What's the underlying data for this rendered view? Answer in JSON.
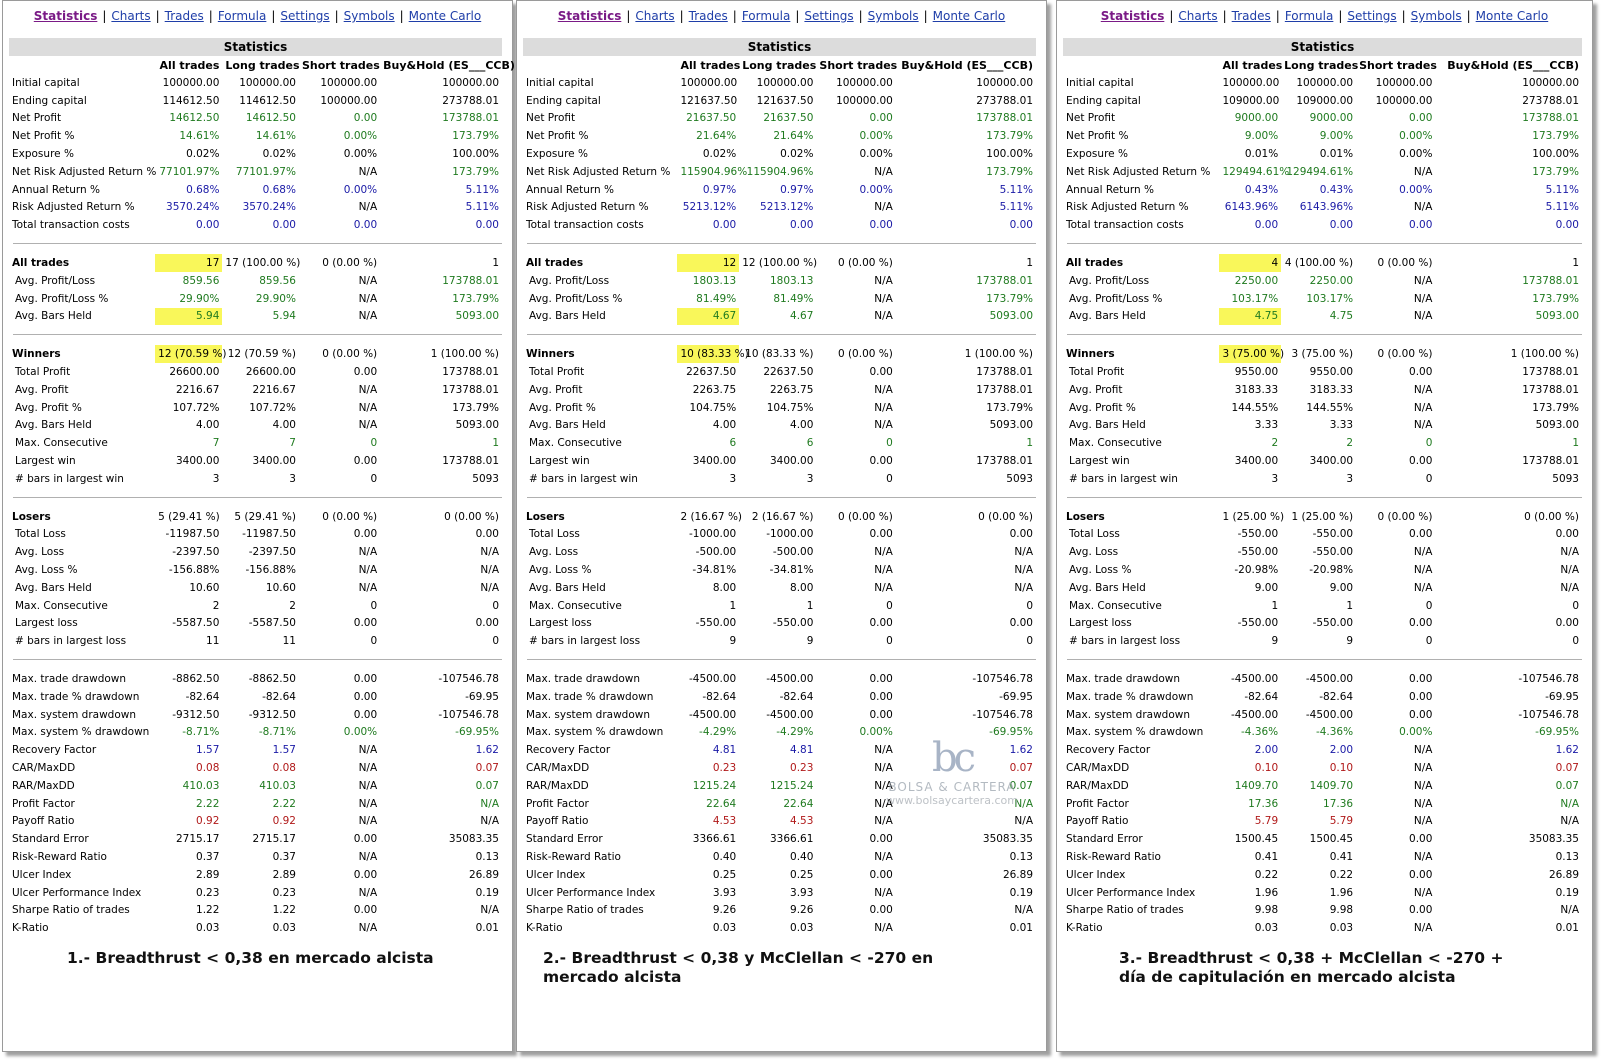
{
  "nav": [
    "Statistics",
    "Charts",
    "Trades",
    "Formula",
    "Settings",
    "Symbols",
    "Monte Carlo"
  ],
  "title": "Statistics",
  "columns": [
    "",
    "All trades",
    "Long trades",
    "Short trades",
    "Buy&Hold (ES___CCB)"
  ],
  "colors": {
    "green": "#1f7a1f",
    "blue": "#1a1aa6",
    "red": "#b01919",
    "highlight": "#f9f75a"
  },
  "watermark": {
    "logo": "bc",
    "brand": "BOLSA & CARTERA",
    "url": "www.bolsaycartera.com"
  },
  "row_labels": [
    "Initial capital",
    "Ending capital",
    "Net Profit",
    "Net Profit %",
    "Exposure %",
    "Net Risk Adjusted Return %",
    "Annual Return %",
    "Risk Adjusted Return %",
    "Total transaction costs",
    "-",
    "All trades",
    "Avg. Profit/Loss",
    "Avg. Profit/Loss %",
    "Avg. Bars Held",
    "-",
    "Winners",
    "Total Profit",
    "Avg. Profit",
    "Avg. Profit %",
    "Avg. Bars Held",
    "Max. Consecutive",
    "Largest win",
    "# bars in largest win",
    "-",
    "Losers",
    "Total Loss",
    "Avg. Loss",
    "Avg. Loss %",
    "Avg. Bars Held",
    "Max. Consecutive",
    "Largest loss",
    "# bars in largest loss",
    "-",
    "Max. trade drawdown",
    "Max. trade % drawdown",
    "Max. system drawdown",
    "Max. system % drawdown",
    "Recovery Factor",
    "CAR/MaxDD",
    "RAR/MaxDD",
    "Profit Factor",
    "Payoff Ratio",
    "Standard Error",
    "Risk-Reward Ratio",
    "Ulcer Index",
    "Ulcer Performance Index",
    "Sharpe Ratio of trades",
    "K-Ratio"
  ],
  "row_styles": [
    "",
    "",
    "g",
    "g",
    "",
    "g",
    "b",
    "b",
    "b",
    "-",
    "h",
    "g",
    "g",
    "g",
    "-",
    "h",
    "",
    "",
    "",
    "",
    "g",
    "",
    "",
    "-",
    "h",
    "",
    "",
    "",
    "",
    "",
    "",
    "",
    "-",
    "",
    "",
    "",
    "g",
    "b",
    "r",
    "g",
    "g",
    "r",
    "",
    "",
    "",
    "",
    "",
    ""
  ],
  "panels": [
    {
      "caption": "1.- Breadthrust < 0,38 en mercado alcista",
      "highlight_rows": [
        10,
        13,
        15
      ],
      "values": [
        [
          "100000.00",
          "100000.00",
          "100000.00",
          "100000.00"
        ],
        [
          "114612.50",
          "114612.50",
          "100000.00",
          "273788.01"
        ],
        [
          "14612.50",
          "14612.50",
          "0.00",
          "173788.01"
        ],
        [
          "14.61%",
          "14.61%",
          "0.00%",
          "173.79%"
        ],
        [
          "0.02%",
          "0.02%",
          "0.00%",
          "100.00%"
        ],
        [
          "77101.97%",
          "77101.97%",
          "N/A",
          "173.79%"
        ],
        [
          "0.68%",
          "0.68%",
          "0.00%",
          "5.11%"
        ],
        [
          "3570.24%",
          "3570.24%",
          "N/A",
          "5.11%"
        ],
        [
          "0.00",
          "0.00",
          "0.00",
          "0.00"
        ],
        null,
        [
          "17",
          "17 (100.00 %)",
          "0 (0.00 %)",
          "1"
        ],
        [
          "859.56",
          "859.56",
          "N/A",
          "173788.01"
        ],
        [
          "29.90%",
          "29.90%",
          "N/A",
          "173.79%"
        ],
        [
          "5.94",
          "5.94",
          "N/A",
          "5093.00"
        ],
        null,
        [
          "12 (70.59 %)",
          "12 (70.59 %)",
          "0 (0.00 %)",
          "1 (100.00 %)"
        ],
        [
          "26600.00",
          "26600.00",
          "0.00",
          "173788.01"
        ],
        [
          "2216.67",
          "2216.67",
          "N/A",
          "173788.01"
        ],
        [
          "107.72%",
          "107.72%",
          "N/A",
          "173.79%"
        ],
        [
          "4.00",
          "4.00",
          "N/A",
          "5093.00"
        ],
        [
          "7",
          "7",
          "0",
          "1"
        ],
        [
          "3400.00",
          "3400.00",
          "0.00",
          "173788.01"
        ],
        [
          "3",
          "3",
          "0",
          "5093"
        ],
        null,
        [
          "5 (29.41 %)",
          "5 (29.41 %)",
          "0 (0.00 %)",
          "0 (0.00 %)"
        ],
        [
          "-11987.50",
          "-11987.50",
          "0.00",
          "0.00"
        ],
        [
          "-2397.50",
          "-2397.50",
          "N/A",
          "N/A"
        ],
        [
          "-156.88%",
          "-156.88%",
          "N/A",
          "N/A"
        ],
        [
          "10.60",
          "10.60",
          "N/A",
          "N/A"
        ],
        [
          "2",
          "2",
          "0",
          "0"
        ],
        [
          "-5587.50",
          "-5587.50",
          "0.00",
          "0.00"
        ],
        [
          "11",
          "11",
          "0",
          "0"
        ],
        null,
        [
          "-8862.50",
          "-8862.50",
          "0.00",
          "-107546.78"
        ],
        [
          "-82.64",
          "-82.64",
          "0.00",
          "-69.95"
        ],
        [
          "-9312.50",
          "-9312.50",
          "0.00",
          "-107546.78"
        ],
        [
          "-8.71%",
          "-8.71%",
          "0.00%",
          "-69.95%"
        ],
        [
          "1.57",
          "1.57",
          "N/A",
          "1.62"
        ],
        [
          "0.08",
          "0.08",
          "N/A",
          "0.07"
        ],
        [
          "410.03",
          "410.03",
          "N/A",
          "0.07"
        ],
        [
          "2.22",
          "2.22",
          "N/A",
          "N/A"
        ],
        [
          "0.92",
          "0.92",
          "N/A",
          "N/A"
        ],
        [
          "2715.17",
          "2715.17",
          "0.00",
          "35083.35"
        ],
        [
          "0.37",
          "0.37",
          "N/A",
          "0.13"
        ],
        [
          "2.89",
          "2.89",
          "0.00",
          "26.89"
        ],
        [
          "0.23",
          "0.23",
          "N/A",
          "0.19"
        ],
        [
          "1.22",
          "1.22",
          "0.00",
          "N/A"
        ],
        [
          "0.03",
          "0.03",
          "N/A",
          "0.01"
        ]
      ]
    },
    {
      "caption": "2.- Breadthrust < 0,38  y McClellan < -270 en\nmercado alcista",
      "highlight_rows": [
        10,
        13,
        15
      ],
      "values": [
        [
          "100000.00",
          "100000.00",
          "100000.00",
          "100000.00"
        ],
        [
          "121637.50",
          "121637.50",
          "100000.00",
          "273788.01"
        ],
        [
          "21637.50",
          "21637.50",
          "0.00",
          "173788.01"
        ],
        [
          "21.64%",
          "21.64%",
          "0.00%",
          "173.79%"
        ],
        [
          "0.02%",
          "0.02%",
          "0.00%",
          "100.00%"
        ],
        [
          "115904.96%",
          "115904.96%",
          "N/A",
          "173.79%"
        ],
        [
          "0.97%",
          "0.97%",
          "0.00%",
          "5.11%"
        ],
        [
          "5213.12%",
          "5213.12%",
          "N/A",
          "5.11%"
        ],
        [
          "0.00",
          "0.00",
          "0.00",
          "0.00"
        ],
        null,
        [
          "12",
          "12 (100.00 %)",
          "0 (0.00 %)",
          "1"
        ],
        [
          "1803.13",
          "1803.13",
          "N/A",
          "173788.01"
        ],
        [
          "81.49%",
          "81.49%",
          "N/A",
          "173.79%"
        ],
        [
          "4.67",
          "4.67",
          "N/A",
          "5093.00"
        ],
        null,
        [
          "10 (83.33 %)",
          "10 (83.33 %)",
          "0 (0.00 %)",
          "1 (100.00 %)"
        ],
        [
          "22637.50",
          "22637.50",
          "0.00",
          "173788.01"
        ],
        [
          "2263.75",
          "2263.75",
          "N/A",
          "173788.01"
        ],
        [
          "104.75%",
          "104.75%",
          "N/A",
          "173.79%"
        ],
        [
          "4.00",
          "4.00",
          "N/A",
          "5093.00"
        ],
        [
          "6",
          "6",
          "0",
          "1"
        ],
        [
          "3400.00",
          "3400.00",
          "0.00",
          "173788.01"
        ],
        [
          "3",
          "3",
          "0",
          "5093"
        ],
        null,
        [
          "2 (16.67 %)",
          "2 (16.67 %)",
          "0 (0.00 %)",
          "0 (0.00 %)"
        ],
        [
          "-1000.00",
          "-1000.00",
          "0.00",
          "0.00"
        ],
        [
          "-500.00",
          "-500.00",
          "N/A",
          "N/A"
        ],
        [
          "-34.81%",
          "-34.81%",
          "N/A",
          "N/A"
        ],
        [
          "8.00",
          "8.00",
          "N/A",
          "N/A"
        ],
        [
          "1",
          "1",
          "0",
          "0"
        ],
        [
          "-550.00",
          "-550.00",
          "0.00",
          "0.00"
        ],
        [
          "9",
          "9",
          "0",
          "0"
        ],
        null,
        [
          "-4500.00",
          "-4500.00",
          "0.00",
          "-107546.78"
        ],
        [
          "-82.64",
          "-82.64",
          "0.00",
          "-69.95"
        ],
        [
          "-4500.00",
          "-4500.00",
          "0.00",
          "-107546.78"
        ],
        [
          "-4.29%",
          "-4.29%",
          "0.00%",
          "-69.95%"
        ],
        [
          "4.81",
          "4.81",
          "N/A",
          "1.62"
        ],
        [
          "0.23",
          "0.23",
          "N/A",
          "0.07"
        ],
        [
          "1215.24",
          "1215.24",
          "N/A",
          "0.07"
        ],
        [
          "22.64",
          "22.64",
          "N/A",
          "N/A"
        ],
        [
          "4.53",
          "4.53",
          "N/A",
          "N/A"
        ],
        [
          "3366.61",
          "3366.61",
          "0.00",
          "35083.35"
        ],
        [
          "0.40",
          "0.40",
          "N/A",
          "0.13"
        ],
        [
          "0.25",
          "0.25",
          "0.00",
          "26.89"
        ],
        [
          "3.93",
          "3.93",
          "N/A",
          "0.19"
        ],
        [
          "9.26",
          "9.26",
          "0.00",
          "N/A"
        ],
        [
          "0.03",
          "0.03",
          "N/A",
          "0.01"
        ]
      ]
    },
    {
      "caption": "3.- Breadthrust < 0,38  + McClellan < -270  +\ndía de capitulación en mercado alcista",
      "highlight_rows": [
        10,
        13,
        15
      ],
      "values": [
        [
          "100000.00",
          "100000.00",
          "100000.00",
          "100000.00"
        ],
        [
          "109000.00",
          "109000.00",
          "100000.00",
          "273788.01"
        ],
        [
          "9000.00",
          "9000.00",
          "0.00",
          "173788.01"
        ],
        [
          "9.00%",
          "9.00%",
          "0.00%",
          "173.79%"
        ],
        [
          "0.01%",
          "0.01%",
          "0.00%",
          "100.00%"
        ],
        [
          "129494.61%",
          "129494.61%",
          "N/A",
          "173.79%"
        ],
        [
          "0.43%",
          "0.43%",
          "0.00%",
          "5.11%"
        ],
        [
          "6143.96%",
          "6143.96%",
          "N/A",
          "5.11%"
        ],
        [
          "0.00",
          "0.00",
          "0.00",
          "0.00"
        ],
        null,
        [
          "4",
          "4 (100.00 %)",
          "0 (0.00 %)",
          "1"
        ],
        [
          "2250.00",
          "2250.00",
          "N/A",
          "173788.01"
        ],
        [
          "103.17%",
          "103.17%",
          "N/A",
          "173.79%"
        ],
        [
          "4.75",
          "4.75",
          "N/A",
          "5093.00"
        ],
        null,
        [
          "3 (75.00 %)",
          "3 (75.00 %)",
          "0 (0.00 %)",
          "1 (100.00 %)"
        ],
        [
          "9550.00",
          "9550.00",
          "0.00",
          "173788.01"
        ],
        [
          "3183.33",
          "3183.33",
          "N/A",
          "173788.01"
        ],
        [
          "144.55%",
          "144.55%",
          "N/A",
          "173.79%"
        ],
        [
          "3.33",
          "3.33",
          "N/A",
          "5093.00"
        ],
        [
          "2",
          "2",
          "0",
          "1"
        ],
        [
          "3400.00",
          "3400.00",
          "0.00",
          "173788.01"
        ],
        [
          "3",
          "3",
          "0",
          "5093"
        ],
        null,
        [
          "1 (25.00 %)",
          "1 (25.00 %)",
          "0 (0.00 %)",
          "0 (0.00 %)"
        ],
        [
          "-550.00",
          "-550.00",
          "0.00",
          "0.00"
        ],
        [
          "-550.00",
          "-550.00",
          "N/A",
          "N/A"
        ],
        [
          "-20.98%",
          "-20.98%",
          "N/A",
          "N/A"
        ],
        [
          "9.00",
          "9.00",
          "N/A",
          "N/A"
        ],
        [
          "1",
          "1",
          "0",
          "0"
        ],
        [
          "-550.00",
          "-550.00",
          "0.00",
          "0.00"
        ],
        [
          "9",
          "9",
          "0",
          "0"
        ],
        null,
        [
          "-4500.00",
          "-4500.00",
          "0.00",
          "-107546.78"
        ],
        [
          "-82.64",
          "-82.64",
          "0.00",
          "-69.95"
        ],
        [
          "-4500.00",
          "-4500.00",
          "0.00",
          "-107546.78"
        ],
        [
          "-4.36%",
          "-4.36%",
          "0.00%",
          "-69.95%"
        ],
        [
          "2.00",
          "2.00",
          "N/A",
          "1.62"
        ],
        [
          "0.10",
          "0.10",
          "N/A",
          "0.07"
        ],
        [
          "1409.70",
          "1409.70",
          "N/A",
          "0.07"
        ],
        [
          "17.36",
          "17.36",
          "N/A",
          "N/A"
        ],
        [
          "5.79",
          "5.79",
          "N/A",
          "N/A"
        ],
        [
          "1500.45",
          "1500.45",
          "0.00",
          "35083.35"
        ],
        [
          "0.41",
          "0.41",
          "N/A",
          "0.13"
        ],
        [
          "0.22",
          "0.22",
          "0.00",
          "26.89"
        ],
        [
          "1.96",
          "1.96",
          "N/A",
          "0.19"
        ],
        [
          "9.98",
          "9.98",
          "0.00",
          "N/A"
        ],
        [
          "0.03",
          "0.03",
          "N/A",
          "0.01"
        ]
      ]
    }
  ]
}
